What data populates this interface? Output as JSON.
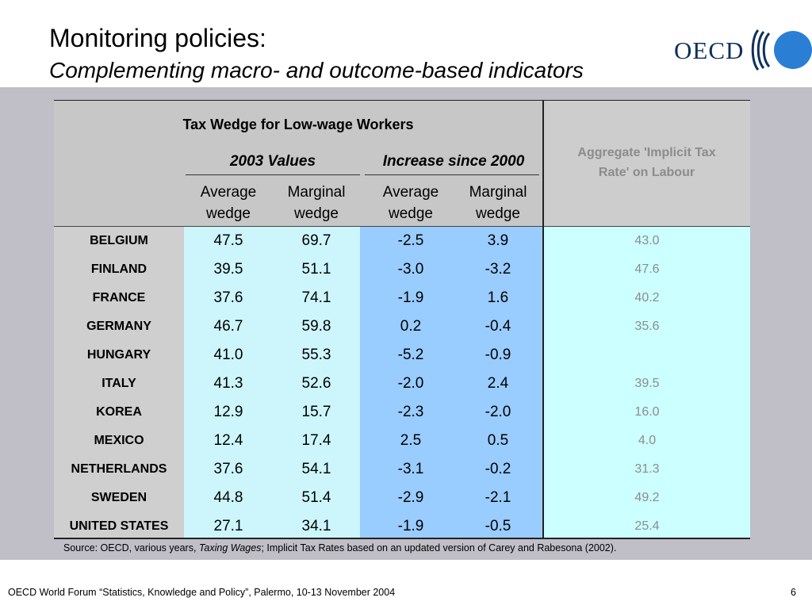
{
  "slide": {
    "title": "Monitoring policies:",
    "subtitle": "Complementing macro- and outcome-based indicators",
    "logo_text": "OECD",
    "footer": "OECD World Forum “Statistics, Knowledge and Policy”, Palermo, 10-13 November 2004",
    "page_number": "6",
    "colors": {
      "logo_blue": "#2a7fd4",
      "logo_text": "#10305c",
      "band": "#c0bec6"
    }
  },
  "table": {
    "main_header": "Tax Wedge for Low-wage Workers",
    "group_2003": "2003 Values",
    "group_increase": "Increase since 2000",
    "col_avg_line1": "Average",
    "col_avg_line2": "wedge",
    "col_marg_line1": "Marginal",
    "col_marg_line2": "wedge",
    "aggregate_header_line1": "Aggregate 'Implicit Tax",
    "aggregate_header_line2": "Rate' on Labour",
    "rows": [
      {
        "country": "BELGIUM",
        "avg2003": "47.5",
        "marg2003": "69.7",
        "avg_inc": "-2.5",
        "marg_inc": "3.9",
        "agg": "43.0"
      },
      {
        "country": "FINLAND",
        "avg2003": "39.5",
        "marg2003": "51.1",
        "avg_inc": "-3.0",
        "marg_inc": "-3.2",
        "agg": "47.6"
      },
      {
        "country": "FRANCE",
        "avg2003": "37.6",
        "marg2003": "74.1",
        "avg_inc": "-1.9",
        "marg_inc": "1.6",
        "agg": "40.2"
      },
      {
        "country": "GERMANY",
        "avg2003": "46.7",
        "marg2003": "59.8",
        "avg_inc": "0.2",
        "marg_inc": "-0.4",
        "agg": "35.6"
      },
      {
        "country": "HUNGARY",
        "avg2003": "41.0",
        "marg2003": "55.3",
        "avg_inc": "-5.2",
        "marg_inc": "-0.9",
        "agg": ""
      },
      {
        "country": "ITALY",
        "avg2003": "41.3",
        "marg2003": "52.6",
        "avg_inc": "-2.0",
        "marg_inc": "2.4",
        "agg": "39.5"
      },
      {
        "country": "KOREA",
        "avg2003": "12.9",
        "marg2003": "15.7",
        "avg_inc": "-2.3",
        "marg_inc": "-2.0",
        "agg": "16.0"
      },
      {
        "country": "MEXICO",
        "avg2003": "12.4",
        "marg2003": "17.4",
        "avg_inc": "2.5",
        "marg_inc": "0.5",
        "agg": "4.0"
      },
      {
        "country": "NETHERLANDS",
        "avg2003": "37.6",
        "marg2003": "54.1",
        "avg_inc": "-3.1",
        "marg_inc": "-0.2",
        "agg": "31.3"
      },
      {
        "country": "SWEDEN",
        "avg2003": "44.8",
        "marg2003": "51.4",
        "avg_inc": "-2.9",
        "marg_inc": "-2.1",
        "agg": "49.2"
      },
      {
        "country": "UNITED STATES",
        "avg2003": "27.1",
        "marg2003": "34.1",
        "avg_inc": "-1.9",
        "marg_inc": "-0.5",
        "agg": "25.4"
      }
    ],
    "source_prefix": "Source: OECD, various years, ",
    "source_italic": "Taxing Wages",
    "source_suffix": "; Implicit Tax Rates based on an updated version of Carey and Rabesona (2002)."
  }
}
